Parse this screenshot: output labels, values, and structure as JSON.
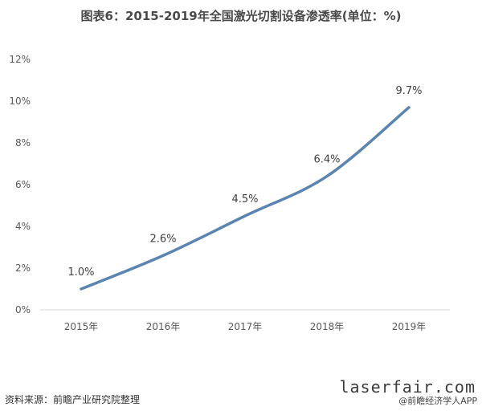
{
  "header": {
    "title": "图表6：2015-2019年全国激光切割设备渗透率(单位：%)"
  },
  "chart_data": {
    "type": "line",
    "title": "图表6：2015-2019年全国激光切割设备渗透率(单位：%)",
    "categories": [
      "2015年",
      "2016年",
      "2017年",
      "2018年",
      "2019年"
    ],
    "series": [
      {
        "values": [
          1.0,
          2.6,
          4.5,
          6.4,
          9.7
        ]
      }
    ],
    "data_labels": [
      "1.0%",
      "2.6%",
      "4.5%",
      "6.4%",
      "9.7%"
    ],
    "y_ticks": [
      "0%",
      "2%",
      "4%",
      "6%",
      "8%",
      "10%",
      "12%"
    ],
    "ylim": [
      0,
      12
    ],
    "grid": false,
    "legend": "none",
    "line_color": "#5b84b1"
  },
  "footer": {
    "source": "资料来源：前瞻产业研究院整理",
    "site": "laserfair.com",
    "app": "@前瞻经济学人APP"
  }
}
